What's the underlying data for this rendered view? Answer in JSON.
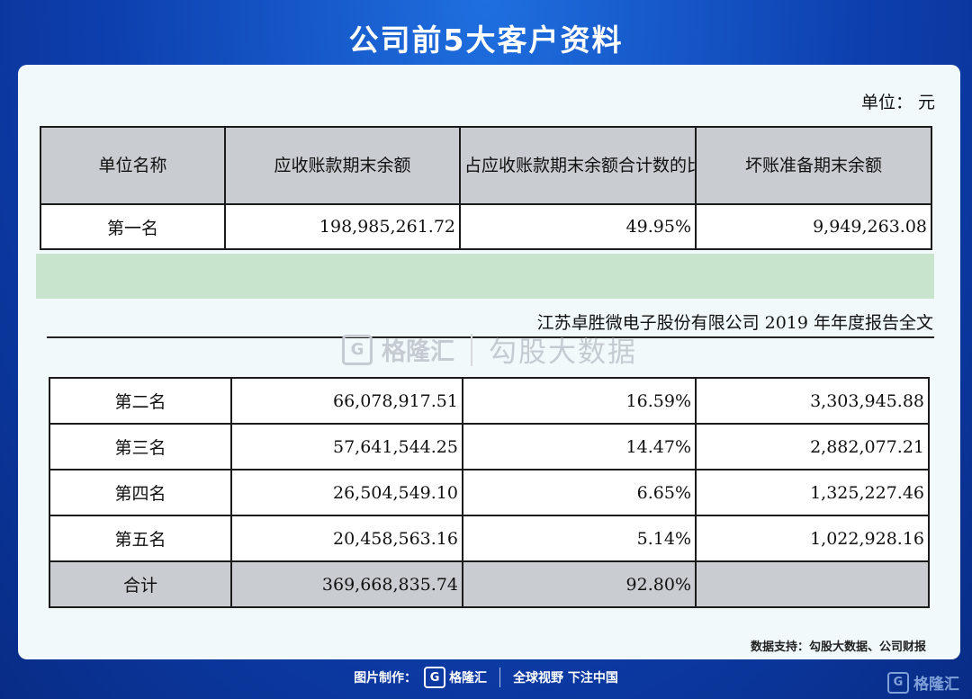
{
  "title": "公司前5大客户资料",
  "unit_label": "单位：  元",
  "headers": [
    "单位名称",
    "应收账款期末余额",
    "占应收账款期末余额合计数的比例",
    "坏账准备期末余额"
  ],
  "first_row": [
    "第一名",
    "198,985,261.72",
    "49.95%",
    "9,949,263.08"
  ],
  "report_caption": "江苏卓胜微电子股份有限公司 2019 年年度报告全文",
  "watermark": {
    "brand": "格隆汇",
    "brand_letter": "G",
    "sub": "勾股大数据"
  },
  "rows": [
    [
      "第二名",
      "66,078,917.51",
      "16.59%",
      "3,303,945.88"
    ],
    [
      "第三名",
      "57,641,544.25",
      "14.47%",
      "2,882,077.21"
    ],
    [
      "第四名",
      "26,504,549.10",
      "6.65%",
      "1,325,227.46"
    ],
    [
      "第五名",
      "20,458,563.16",
      "5.14%",
      "1,022,928.16"
    ]
  ],
  "total_row": [
    "合计",
    "369,668,835.74",
    "92.80%",
    ""
  ],
  "source": "数据支持：勾股大数据、公司财报",
  "footer": {
    "made_by": "图片制作：",
    "brand": "格隆汇",
    "brand_letter": "G",
    "slogan": "全球视野 下注中国"
  },
  "corner_brand": "格隆汇",
  "corner_letter": "G"
}
